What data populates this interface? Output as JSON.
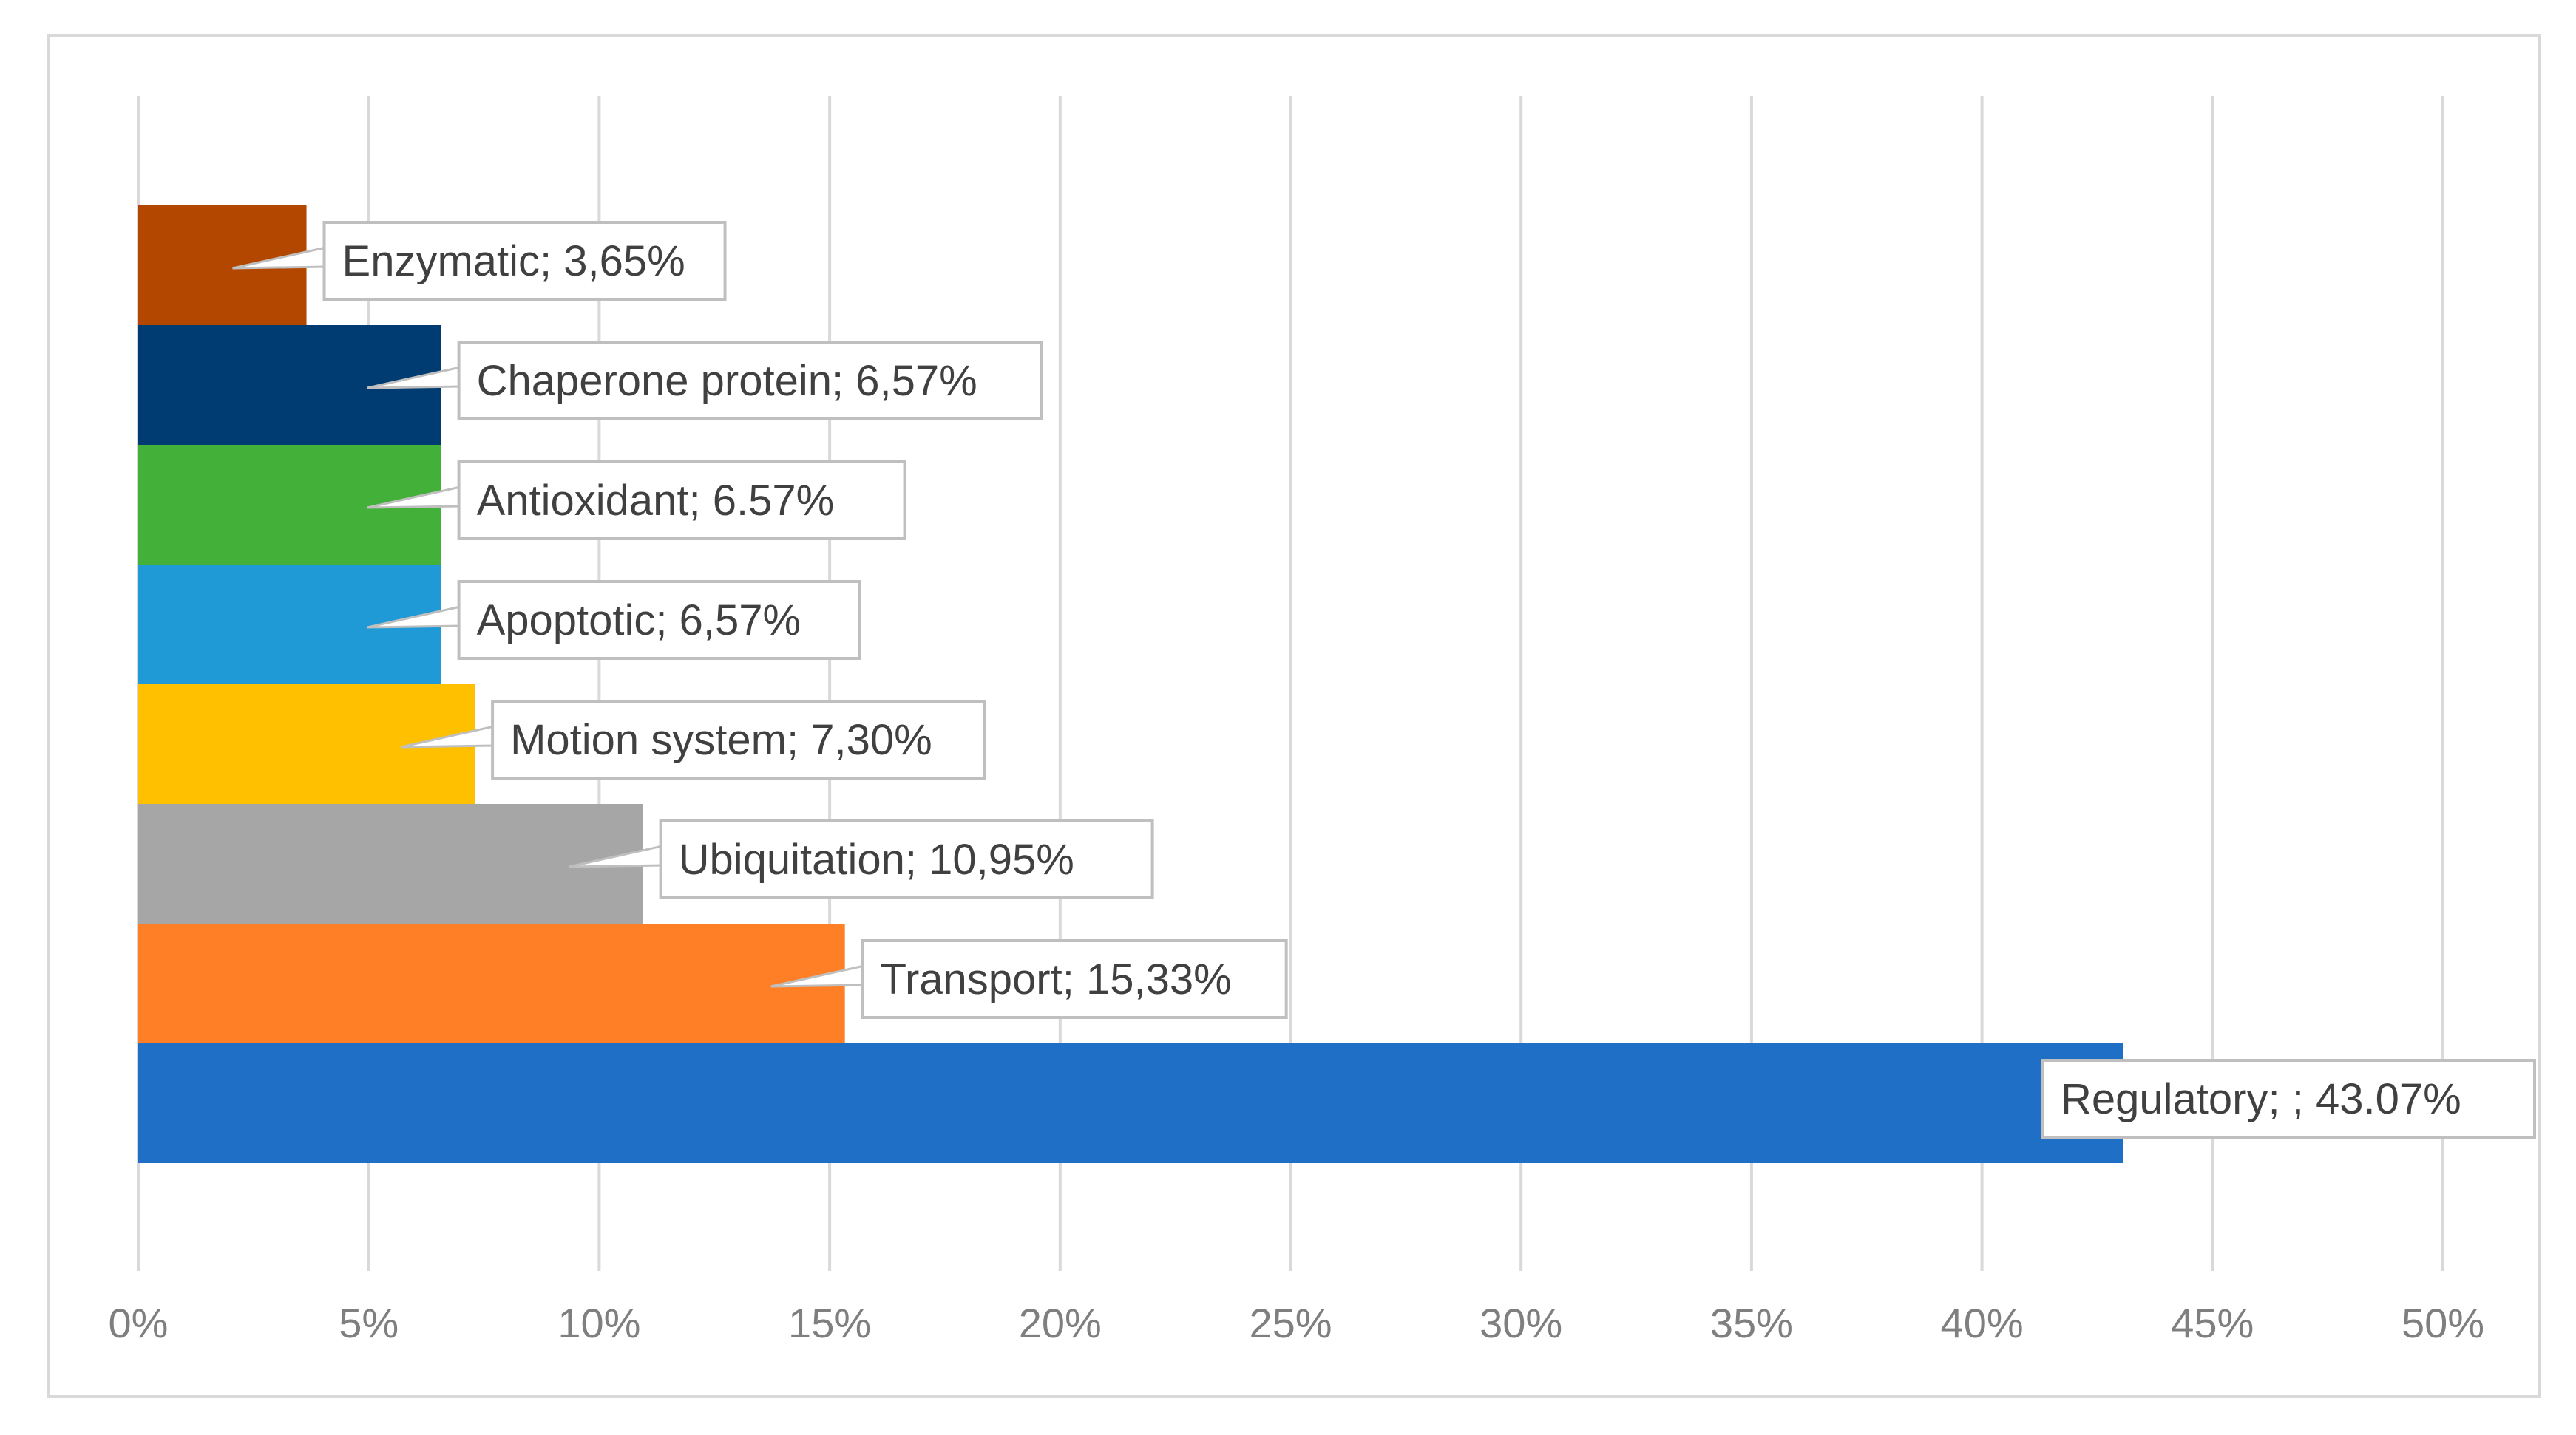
{
  "chart_data": {
    "type": "bar",
    "orientation": "horizontal",
    "title": "",
    "xlabel": "",
    "ylabel": "",
    "xlim": [
      0,
      50
    ],
    "x_ticks": [
      0,
      5,
      10,
      15,
      20,
      25,
      30,
      35,
      40,
      45,
      50
    ],
    "x_tick_labels": [
      "0%",
      "5%",
      "10%",
      "15%",
      "20%",
      "25%",
      "30%",
      "35%",
      "40%",
      "45%",
      "50%"
    ],
    "grid": true,
    "legend": "none",
    "categories": [
      "Enzymatic",
      "Chaperone protein",
      "Antioxidant",
      "Apoptotic",
      "Motion system",
      "Ubiquitation",
      "Transport",
      "Regulatory"
    ],
    "values": [
      3.65,
      6.57,
      6.57,
      6.57,
      7.3,
      10.95,
      15.33,
      43.07
    ],
    "data_labels": [
      "Enzymatic; 3,65%",
      "Chaperone protein; 6,57%",
      "Antioxidant; 6.57%",
      "Apoptotic; 6,57%",
      "Motion system; 7,30%",
      "Ubiquitation; 10,95%",
      "Transport; 15,33%",
      "Regulatory; ; 43.07%"
    ],
    "colors": [
      "#b34700",
      "#003c71",
      "#43b03a",
      "#1f9ad6",
      "#ffc000",
      "#a6a6a6",
      "#ff7f27",
      "#1f6fc6"
    ]
  }
}
